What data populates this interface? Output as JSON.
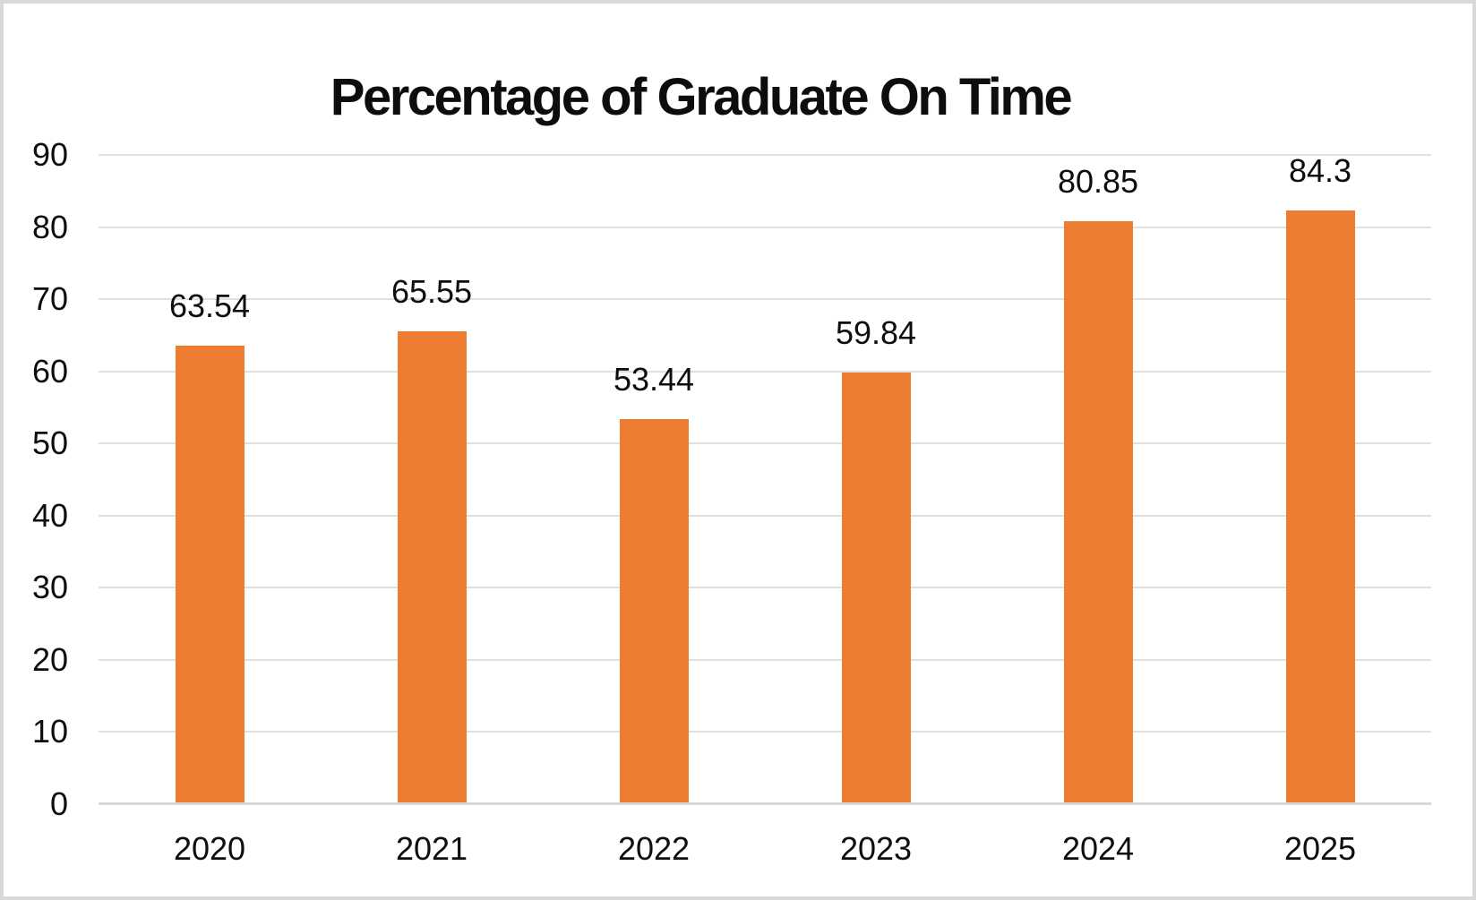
{
  "chart_data": {
    "type": "bar",
    "title": "Percentage of Graduate On Time",
    "categories": [
      "2020",
      "2021",
      "2022",
      "2023",
      "2024",
      "2025"
    ],
    "values": [
      63.54,
      65.55,
      53.44,
      59.84,
      80.85,
      84.3
    ],
    "data_labels": [
      "63.54",
      "65.55",
      "53.44",
      "59.84",
      "80.85",
      "84.3"
    ],
    "xlabel": "",
    "ylabel": "",
    "ylim": [
      0,
      90
    ],
    "ytick_step": 10,
    "ytick_labels": [
      "0",
      "10",
      "20",
      "30",
      "40",
      "50",
      "60",
      "70",
      "80",
      "90"
    ],
    "grid": true,
    "legend": "none",
    "bar_color": "#ED7D31",
    "gridline_color": "#E0E0E0",
    "axis_line_color": "#D9D9D9",
    "text_color": "#0D0D0D",
    "background": "#FFFFFF",
    "frame_border_color": "#D9D9D9"
  }
}
